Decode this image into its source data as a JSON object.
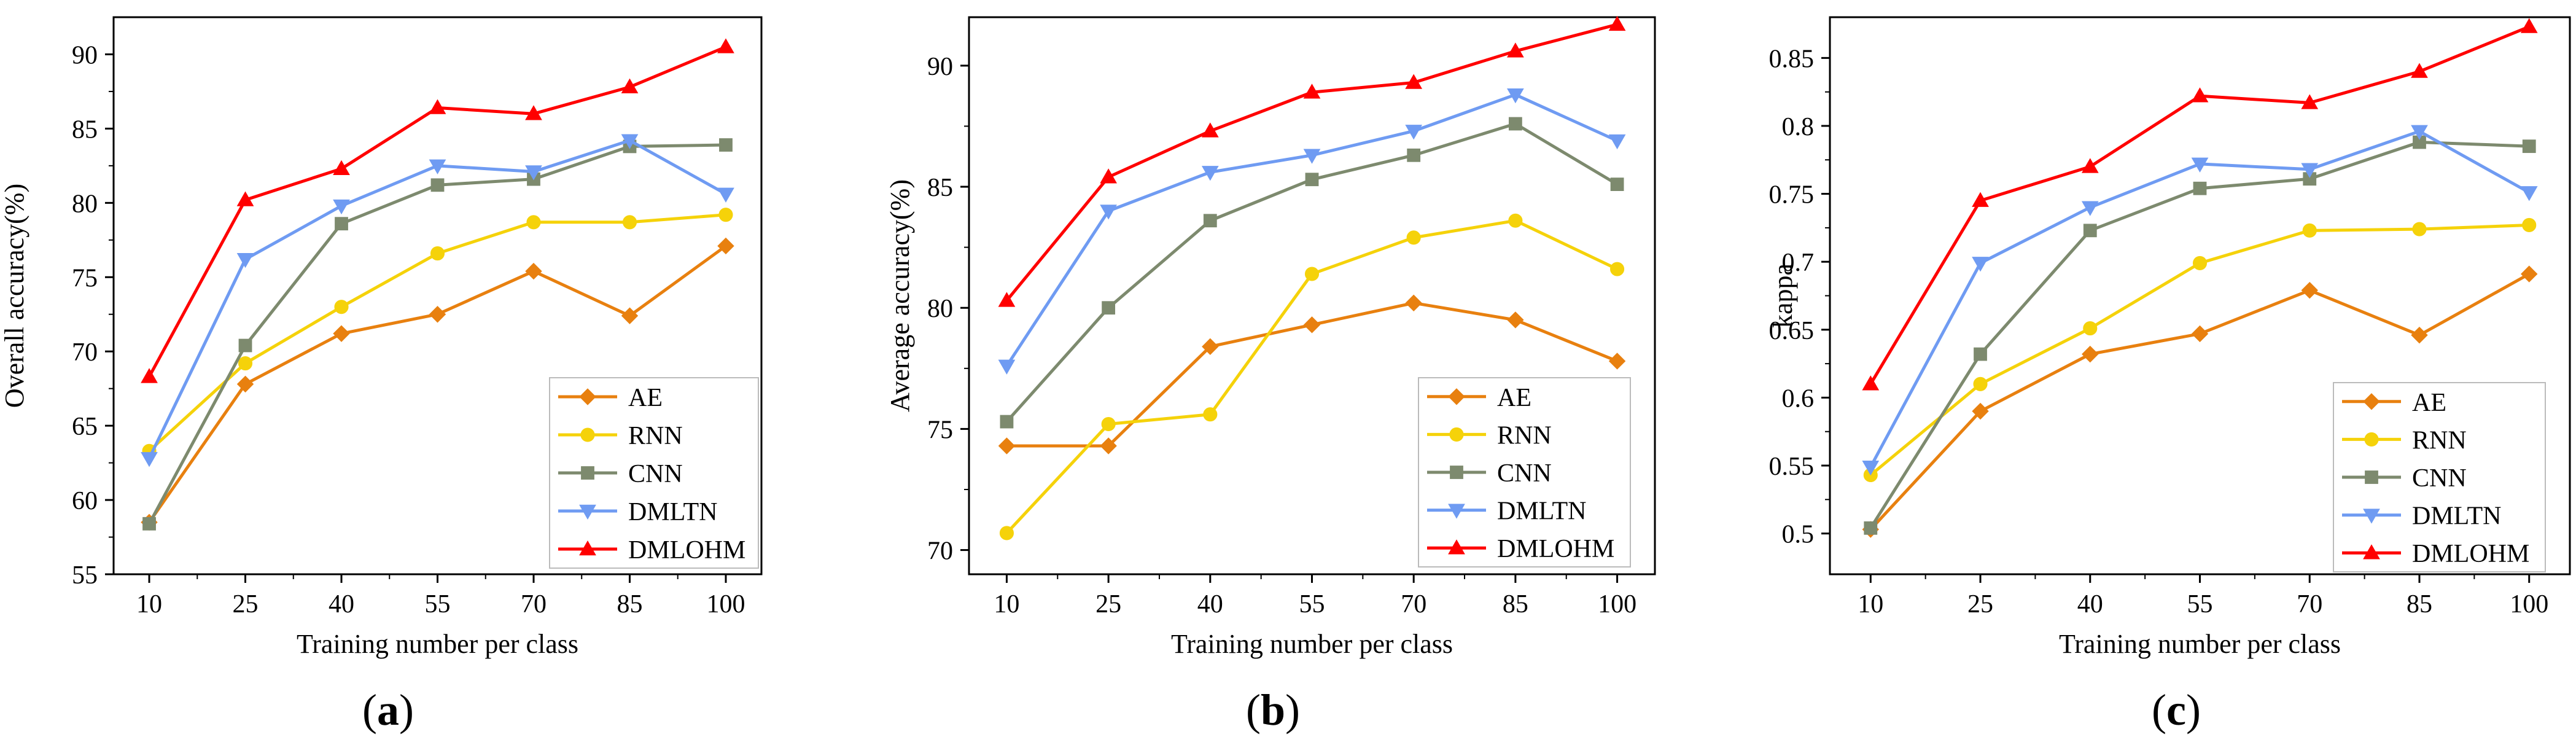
{
  "colors": {
    "AE": "#E8800F",
    "RNN": "#F5D20A",
    "CNN": "#7D8A6E",
    "DMLTN": "#6F9BF2",
    "DMLOHM": "#FF0000"
  },
  "markers": {
    "AE": "diamond",
    "RNN": "circle",
    "CNN": "square",
    "DMLTN": "triangle-down",
    "DMLOHM": "triangle-up"
  },
  "chart_data": [
    {
      "type": "line",
      "panel_label": "(a)",
      "xlabel": "Training number per class",
      "ylabel": "Overall accuracy(%)",
      "x": [
        10,
        25,
        40,
        55,
        70,
        85,
        100
      ],
      "x_ticklabels": [
        "10",
        "25",
        "40",
        "55",
        "70",
        "85",
        "100"
      ],
      "ylim": [
        55,
        92.5
      ],
      "yticks": [
        55,
        60,
        65,
        70,
        75,
        80,
        85,
        90
      ],
      "y_ticklabels": [
        "55",
        "60",
        "65",
        "70",
        "75",
        "80",
        "85",
        "90"
      ],
      "legend_position": "bottom-right",
      "series": [
        {
          "name": "AE",
          "values": [
            58.5,
            67.8,
            71.2,
            72.5,
            75.4,
            72.4,
            77.1
          ]
        },
        {
          "name": "RNN",
          "values": [
            63.3,
            69.2,
            73.0,
            76.6,
            78.7,
            78.7,
            79.2
          ]
        },
        {
          "name": "CNN",
          "values": [
            58.4,
            70.4,
            78.6,
            81.2,
            81.6,
            83.8,
            83.9
          ]
        },
        {
          "name": "DMLTN",
          "values": [
            62.8,
            76.2,
            79.8,
            82.5,
            82.1,
            84.2,
            80.6
          ]
        },
        {
          "name": "DMLOHM",
          "values": [
            68.3,
            80.2,
            82.3,
            86.4,
            86.0,
            87.8,
            90.5
          ]
        }
      ]
    },
    {
      "type": "line",
      "panel_label": "(b)",
      "xlabel": "Training number per class",
      "ylabel": "Average accuracy(%)",
      "x": [
        10,
        25,
        40,
        55,
        70,
        85,
        100
      ],
      "x_ticklabels": [
        "10",
        "25",
        "40",
        "55",
        "70",
        "85",
        "100"
      ],
      "ylim": [
        69,
        92
      ],
      "yticks": [
        70,
        75,
        80,
        85,
        90
      ],
      "y_ticklabels": [
        "70",
        "75",
        "80",
        "85",
        "90"
      ],
      "legend_position": "bottom-right",
      "series": [
        {
          "name": "AE",
          "values": [
            74.3,
            74.3,
            78.4,
            79.3,
            80.2,
            79.5,
            77.8
          ]
        },
        {
          "name": "RNN",
          "values": [
            70.7,
            75.2,
            75.6,
            81.4,
            82.9,
            83.6,
            81.6
          ]
        },
        {
          "name": "CNN",
          "values": [
            75.3,
            80.0,
            83.6,
            85.3,
            86.3,
            87.6,
            85.1
          ]
        },
        {
          "name": "DMLTN",
          "values": [
            77.6,
            84.0,
            85.6,
            86.3,
            87.3,
            88.8,
            86.9
          ]
        },
        {
          "name": "DMLOHM",
          "values": [
            80.3,
            85.4,
            87.3,
            88.9,
            89.3,
            90.6,
            91.7
          ]
        }
      ]
    },
    {
      "type": "line",
      "panel_label": "(c)",
      "xlabel": "Training number per class",
      "ylabel": "kappa",
      "x": [
        10,
        25,
        40,
        55,
        70,
        85,
        100
      ],
      "x_ticklabels": [
        "10",
        "25",
        "40",
        "55",
        "70",
        "85",
        "100"
      ],
      "ylim": [
        0.47,
        0.88
      ],
      "yticks": [
        0.5,
        0.55,
        0.6,
        0.65,
        0.7,
        0.75,
        0.8,
        0.85
      ],
      "y_ticklabels": [
        "0.5",
        "0.55",
        "0.6",
        "0.65",
        "0.7",
        "0.75",
        "0.8",
        "0.85"
      ],
      "legend_position": "bottom-right",
      "series": [
        {
          "name": "AE",
          "values": [
            0.503,
            0.59,
            0.632,
            0.647,
            0.679,
            0.646,
            0.691
          ]
        },
        {
          "name": "RNN",
          "values": [
            0.543,
            0.61,
            0.651,
            0.699,
            0.723,
            0.724,
            0.727
          ]
        },
        {
          "name": "CNN",
          "values": [
            0.504,
            0.632,
            0.723,
            0.754,
            0.761,
            0.788,
            0.785
          ]
        },
        {
          "name": "DMLTN",
          "values": [
            0.549,
            0.699,
            0.74,
            0.772,
            0.768,
            0.796,
            0.751
          ]
        },
        {
          "name": "DMLOHM",
          "values": [
            0.61,
            0.745,
            0.77,
            0.822,
            0.817,
            0.84,
            0.873
          ]
        }
      ]
    }
  ]
}
